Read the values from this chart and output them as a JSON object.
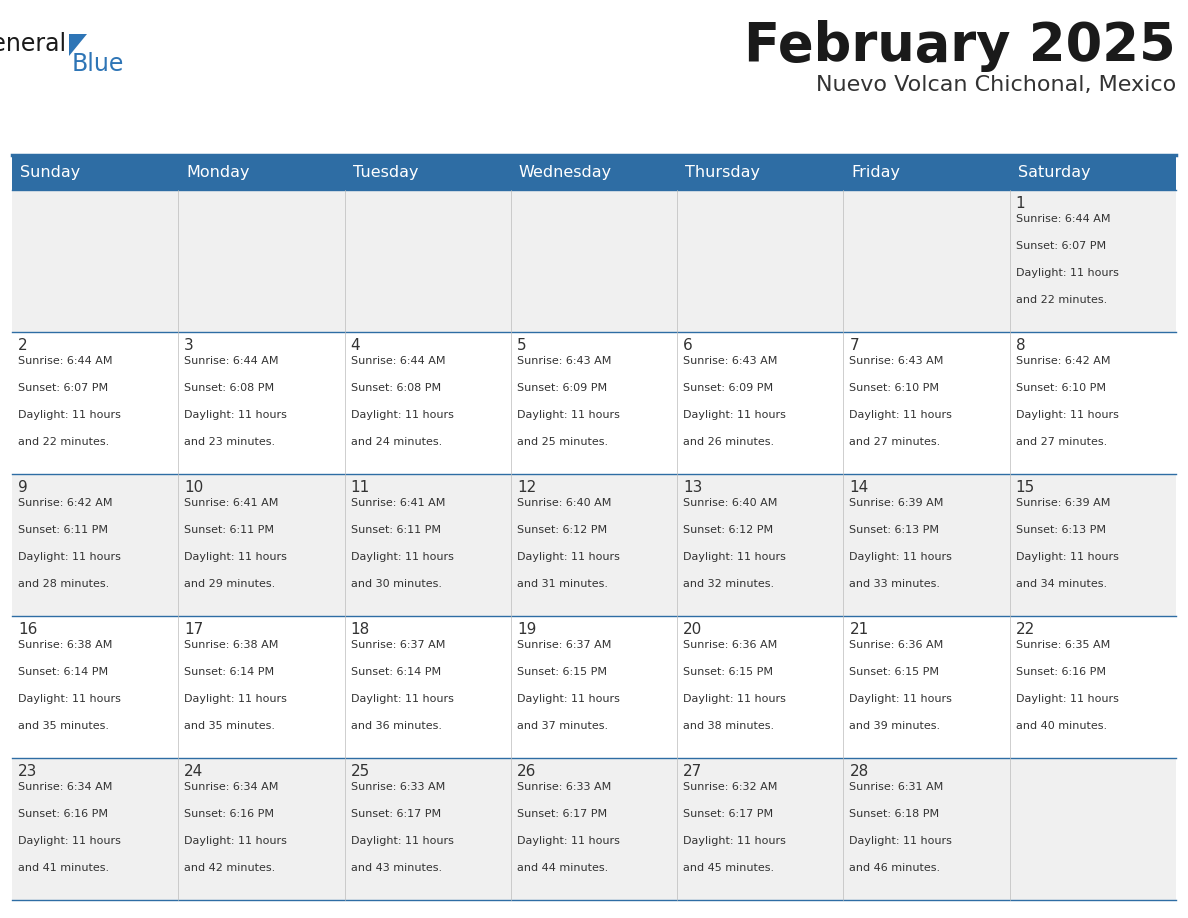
{
  "title": "February 2025",
  "subtitle": "Nuevo Volcan Chichonal, Mexico",
  "header_bg_color": "#2E6DA4",
  "header_text_color": "#FFFFFF",
  "day_names": [
    "Sunday",
    "Monday",
    "Tuesday",
    "Wednesday",
    "Thursday",
    "Friday",
    "Saturday"
  ],
  "title_color": "#1a1a1a",
  "subtitle_color": "#333333",
  "cell_bg_even": "#F0F0F0",
  "cell_bg_odd": "#FFFFFF",
  "grid_line_color": "#2E6DA4",
  "day_num_color": "#333333",
  "cell_text_color": "#333333",
  "logo_general_color": "#1a1a1a",
  "logo_blue_color": "#2E75B6",
  "calendar": [
    [
      null,
      null,
      null,
      null,
      null,
      null,
      {
        "day": "1",
        "sunrise": "6:44 AM",
        "sunset": "6:07 PM",
        "daylight": "11 hours",
        "daylight2": "and 22 minutes."
      }
    ],
    [
      {
        "day": "2",
        "sunrise": "6:44 AM",
        "sunset": "6:07 PM",
        "daylight": "11 hours",
        "daylight2": "and 22 minutes."
      },
      {
        "day": "3",
        "sunrise": "6:44 AM",
        "sunset": "6:08 PM",
        "daylight": "11 hours",
        "daylight2": "and 23 minutes."
      },
      {
        "day": "4",
        "sunrise": "6:44 AM",
        "sunset": "6:08 PM",
        "daylight": "11 hours",
        "daylight2": "and 24 minutes."
      },
      {
        "day": "5",
        "sunrise": "6:43 AM",
        "sunset": "6:09 PM",
        "daylight": "11 hours",
        "daylight2": "and 25 minutes."
      },
      {
        "day": "6",
        "sunrise": "6:43 AM",
        "sunset": "6:09 PM",
        "daylight": "11 hours",
        "daylight2": "and 26 minutes."
      },
      {
        "day": "7",
        "sunrise": "6:43 AM",
        "sunset": "6:10 PM",
        "daylight": "11 hours",
        "daylight2": "and 27 minutes."
      },
      {
        "day": "8",
        "sunrise": "6:42 AM",
        "sunset": "6:10 PM",
        "daylight": "11 hours",
        "daylight2": "and 27 minutes."
      }
    ],
    [
      {
        "day": "9",
        "sunrise": "6:42 AM",
        "sunset": "6:11 PM",
        "daylight": "11 hours",
        "daylight2": "and 28 minutes."
      },
      {
        "day": "10",
        "sunrise": "6:41 AM",
        "sunset": "6:11 PM",
        "daylight": "11 hours",
        "daylight2": "and 29 minutes."
      },
      {
        "day": "11",
        "sunrise": "6:41 AM",
        "sunset": "6:11 PM",
        "daylight": "11 hours",
        "daylight2": "and 30 minutes."
      },
      {
        "day": "12",
        "sunrise": "6:40 AM",
        "sunset": "6:12 PM",
        "daylight": "11 hours",
        "daylight2": "and 31 minutes."
      },
      {
        "day": "13",
        "sunrise": "6:40 AM",
        "sunset": "6:12 PM",
        "daylight": "11 hours",
        "daylight2": "and 32 minutes."
      },
      {
        "day": "14",
        "sunrise": "6:39 AM",
        "sunset": "6:13 PM",
        "daylight": "11 hours",
        "daylight2": "and 33 minutes."
      },
      {
        "day": "15",
        "sunrise": "6:39 AM",
        "sunset": "6:13 PM",
        "daylight": "11 hours",
        "daylight2": "and 34 minutes."
      }
    ],
    [
      {
        "day": "16",
        "sunrise": "6:38 AM",
        "sunset": "6:14 PM",
        "daylight": "11 hours",
        "daylight2": "and 35 minutes."
      },
      {
        "day": "17",
        "sunrise": "6:38 AM",
        "sunset": "6:14 PM",
        "daylight": "11 hours",
        "daylight2": "and 35 minutes."
      },
      {
        "day": "18",
        "sunrise": "6:37 AM",
        "sunset": "6:14 PM",
        "daylight": "11 hours",
        "daylight2": "and 36 minutes."
      },
      {
        "day": "19",
        "sunrise": "6:37 AM",
        "sunset": "6:15 PM",
        "daylight": "11 hours",
        "daylight2": "and 37 minutes."
      },
      {
        "day": "20",
        "sunrise": "6:36 AM",
        "sunset": "6:15 PM",
        "daylight": "11 hours",
        "daylight2": "and 38 minutes."
      },
      {
        "day": "21",
        "sunrise": "6:36 AM",
        "sunset": "6:15 PM",
        "daylight": "11 hours",
        "daylight2": "and 39 minutes."
      },
      {
        "day": "22",
        "sunrise": "6:35 AM",
        "sunset": "6:16 PM",
        "daylight": "11 hours",
        "daylight2": "and 40 minutes."
      }
    ],
    [
      {
        "day": "23",
        "sunrise": "6:34 AM",
        "sunset": "6:16 PM",
        "daylight": "11 hours",
        "daylight2": "and 41 minutes."
      },
      {
        "day": "24",
        "sunrise": "6:34 AM",
        "sunset": "6:16 PM",
        "daylight": "11 hours",
        "daylight2": "and 42 minutes."
      },
      {
        "day": "25",
        "sunrise": "6:33 AM",
        "sunset": "6:17 PM",
        "daylight": "11 hours",
        "daylight2": "and 43 minutes."
      },
      {
        "day": "26",
        "sunrise": "6:33 AM",
        "sunset": "6:17 PM",
        "daylight": "11 hours",
        "daylight2": "and 44 minutes."
      },
      {
        "day": "27",
        "sunrise": "6:32 AM",
        "sunset": "6:17 PM",
        "daylight": "11 hours",
        "daylight2": "and 45 minutes."
      },
      {
        "day": "28",
        "sunrise": "6:31 AM",
        "sunset": "6:18 PM",
        "daylight": "11 hours",
        "daylight2": "and 46 minutes."
      },
      null
    ]
  ]
}
